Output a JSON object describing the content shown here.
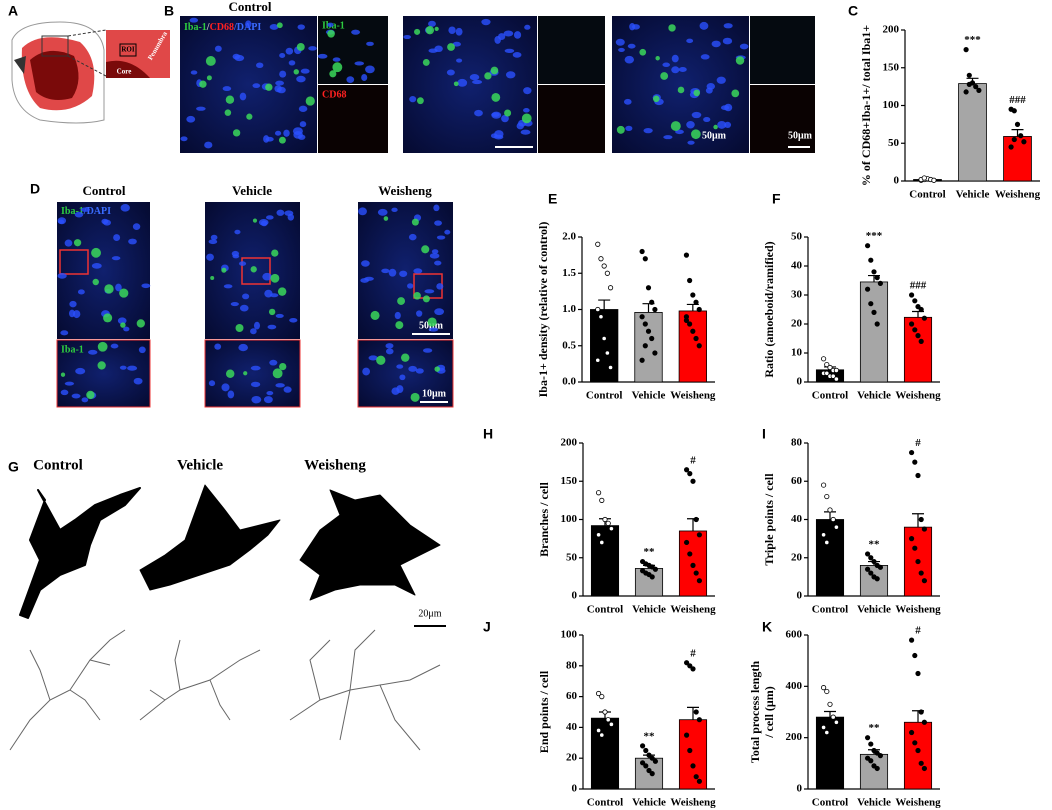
{
  "chart_data": [
    {
      "type": "bar",
      "label": "C",
      "ylabel": [
        "% of CD68+Iba-1+/ total Iba1+"
      ],
      "categories": [
        "Control",
        "Vehicle",
        "Weisheng"
      ],
      "colors": [
        "#000000",
        "#a6a6a6",
        "#ff0000"
      ],
      "values": [
        2,
        129,
        59
      ],
      "errors": [
        1,
        7,
        9
      ],
      "points": [
        [
          1,
          2,
          3,
          2,
          1,
          2,
          4
        ],
        [
          174,
          140,
          130,
          125,
          120,
          118,
          128
        ],
        [
          95,
          93,
          75,
          60,
          52,
          45,
          55
        ]
      ],
      "annotations": [
        null,
        "***",
        "###"
      ],
      "ylim": [
        0,
        200
      ],
      "yticks": [
        0,
        50,
        100,
        150,
        200
      ]
    },
    {
      "type": "bar",
      "label": "E",
      "ylabel": [
        "Iba-1+ density (relative of control)"
      ],
      "categories": [
        "Control",
        "Vehicle",
        "Weisheng"
      ],
      "colors": [
        "#000000",
        "#a6a6a6",
        "#ff0000"
      ],
      "values": [
        1.0,
        0.96,
        0.98
      ],
      "errors": [
        0.13,
        0.12,
        0.09
      ],
      "points": [
        [
          1.9,
          1.7,
          1.6,
          1.5,
          1.3,
          1.0,
          0.9,
          0.6,
          0.4,
          0.2,
          0.3
        ],
        [
          1.8,
          1.7,
          1.3,
          1.1,
          1.0,
          0.9,
          0.8,
          0.7,
          0.6,
          0.4,
          0.3,
          0.5
        ],
        [
          1.75,
          1.4,
          1.2,
          1.1,
          1.0,
          0.9,
          0.8,
          0.7,
          0.6,
          0.5,
          0.85
        ]
      ],
      "annotations": [
        null,
        null,
        null
      ],
      "ylim": [
        0,
        2
      ],
      "yticks": [
        {
          "value": 0,
          "label": "0.0"
        },
        0.5,
        {
          "value": 1,
          "label": "1.0"
        },
        1.5,
        {
          "value": 2,
          "label": "2.0"
        }
      ]
    },
    {
      "type": "bar",
      "label": "F",
      "ylabel": [
        "Ratio (amoeboid/ramified)"
      ],
      "categories": [
        "Control",
        "Vehicle",
        "Weisheng"
      ],
      "colors": [
        "#000000",
        "#a6a6a6",
        "#ff0000"
      ],
      "values": [
        4.2,
        34.5,
        22.3
      ],
      "errors": [
        1,
        2.2,
        2
      ],
      "points": [
        [
          8,
          6,
          5,
          4,
          4,
          3,
          3,
          2,
          2,
          1
        ],
        [
          47,
          42,
          38,
          36,
          34,
          32,
          27,
          24,
          20
        ],
        [
          30,
          28,
          26,
          25,
          22,
          20,
          18,
          16,
          14
        ]
      ],
      "annotations": [
        null,
        "***",
        "###"
      ],
      "ylim": [
        0,
        50
      ],
      "yticks": [
        0,
        10,
        20,
        30,
        40,
        50
      ]
    },
    {
      "type": "bar",
      "label": "H",
      "ylabel": [
        "Branches / cell"
      ],
      "categories": [
        "Control",
        "Vehicle",
        "Weisheng"
      ],
      "colors": [
        "#000000",
        "#a6a6a6",
        "#ff0000"
      ],
      "values": [
        92,
        36,
        85
      ],
      "errors": [
        9,
        4,
        16
      ],
      "points": [
        [
          135,
          125,
          100,
          95,
          88,
          80,
          70
        ],
        [
          45,
          42,
          40,
          38,
          35,
          33,
          30,
          28,
          25
        ],
        [
          165,
          160,
          150,
          100,
          80,
          70,
          55,
          40,
          30,
          20
        ]
      ],
      "annotations": [
        null,
        "**",
        "#"
      ],
      "ylim": [
        0,
        200
      ],
      "yticks": [
        0,
        50,
        100,
        150,
        200
      ]
    },
    {
      "type": "bar",
      "label": "I",
      "ylabel": [
        "Triple points / cell"
      ],
      "categories": [
        "Control",
        "Vehicle",
        "Weisheng"
      ],
      "colors": [
        "#000000",
        "#a6a6a6",
        "#ff0000"
      ],
      "values": [
        40,
        16,
        36
      ],
      "errors": [
        4,
        2,
        7
      ],
      "points": [
        [
          58,
          52,
          45,
          40,
          36,
          32,
          28
        ],
        [
          22,
          20,
          18,
          16,
          15,
          14,
          12,
          10,
          9
        ],
        [
          75,
          70,
          63,
          40,
          35,
          30,
          25,
          18,
          12,
          8
        ]
      ],
      "annotations": [
        null,
        "**",
        "#"
      ],
      "ylim": [
        0,
        80
      ],
      "yticks": [
        0,
        20,
        40,
        60,
        80
      ]
    },
    {
      "type": "bar",
      "label": "J",
      "ylabel": [
        "End points / cell"
      ],
      "categories": [
        "Control",
        "Vehicle",
        "Weisheng"
      ],
      "colors": [
        "#000000",
        "#a6a6a6",
        "#ff0000"
      ],
      "values": [
        46,
        20,
        45
      ],
      "errors": [
        4,
        2,
        8
      ],
      "points": [
        [
          62,
          60,
          50,
          45,
          42,
          38,
          35
        ],
        [
          28,
          25,
          22,
          20,
          18,
          17,
          15,
          12,
          10
        ],
        [
          82,
          80,
          78,
          50,
          45,
          35,
          25,
          15,
          8,
          5
        ]
      ],
      "annotations": [
        null,
        "**",
        "#"
      ],
      "ylim": [
        0,
        100
      ],
      "yticks": [
        0,
        20,
        40,
        60,
        80,
        100
      ]
    },
    {
      "type": "bar",
      "label": "K",
      "ylabel": [
        "Total process length",
        "/ cell (μm)"
      ],
      "categories": [
        "Control",
        "Vehicle",
        "Weisheng"
      ],
      "colors": [
        "#000000",
        "#a6a6a6",
        "#ff0000"
      ],
      "values": [
        280,
        135,
        260
      ],
      "errors": [
        22,
        18,
        45
      ],
      "points": [
        [
          395,
          380,
          330,
          280,
          260,
          240,
          220
        ],
        [
          200,
          175,
          150,
          140,
          130,
          120,
          110,
          90,
          80
        ],
        [
          580,
          520,
          450,
          300,
          260,
          220,
          180,
          150,
          100,
          80
        ]
      ],
      "annotations": [
        null,
        "**",
        "#"
      ],
      "ylim": [
        0,
        600
      ],
      "yticks": [
        0,
        200,
        400,
        600
      ]
    }
  ],
  "figure": {
    "A": {
      "label": "A",
      "roi": "ROI",
      "penumbra": "Penumbra",
      "core": "Core"
    },
    "B": {
      "label": "B",
      "control": "Control",
      "vehicle": "Vehicle",
      "weisheng": "Weisheng",
      "stain": [
        "Iba-1",
        "/",
        "CD68",
        "/DAPI"
      ],
      "iba": "Iba-1",
      "cd68": "CD68",
      "scale1": "50μm",
      "scale2": "50μm"
    },
    "D": {
      "label": "D",
      "control": "Control",
      "vehicle": "Vehicle",
      "weisheng": "Weisheng",
      "stain": [
        "Iba-1",
        "/DAPI"
      ],
      "inset": "Iba-1",
      "scale1": "50μm",
      "scale2": "10μm"
    },
    "G": {
      "label": "G",
      "control": "Control",
      "vehicle": "Vehicle",
      "weisheng": "Weisheng",
      "scale": "20μm"
    }
  }
}
